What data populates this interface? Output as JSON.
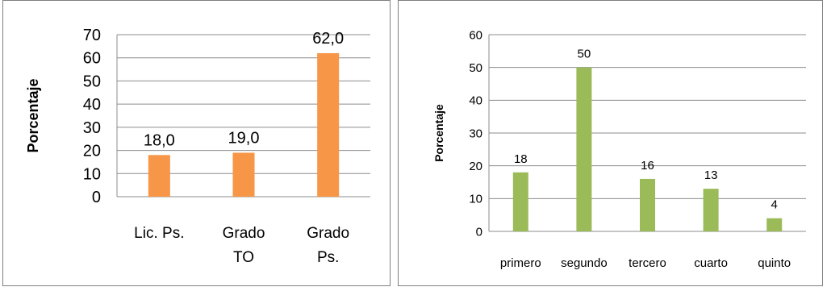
{
  "chart_data": [
    {
      "type": "bar",
      "categories": [
        [
          "Lic. Ps."
        ],
        [
          "Grado",
          "TO"
        ],
        [
          "Grado",
          "Ps."
        ]
      ],
      "values": [
        18.0,
        19.0,
        62.0
      ],
      "data_labels": [
        "18,0",
        "19,0",
        "62,0"
      ],
      "ylabel": "Porcentaje",
      "ylim": [
        0,
        70
      ],
      "yticks": [
        0,
        10,
        20,
        30,
        40,
        50,
        60,
        70
      ],
      "grid": true,
      "bar_color": "#f79646"
    },
    {
      "type": "bar",
      "categories": [
        [
          "primero"
        ],
        [
          "segundo"
        ],
        [
          "tercero"
        ],
        [
          "cuarto"
        ],
        [
          "quinto"
        ]
      ],
      "values": [
        18,
        50,
        16,
        13,
        4
      ],
      "data_labels": [
        "18",
        "50",
        "16",
        "13",
        "4"
      ],
      "ylabel": "Porcentaje",
      "ylim": [
        0,
        60
      ],
      "yticks": [
        0,
        10,
        20,
        30,
        40,
        50,
        60
      ],
      "grid": true,
      "bar_color": "#9bbb59"
    }
  ]
}
